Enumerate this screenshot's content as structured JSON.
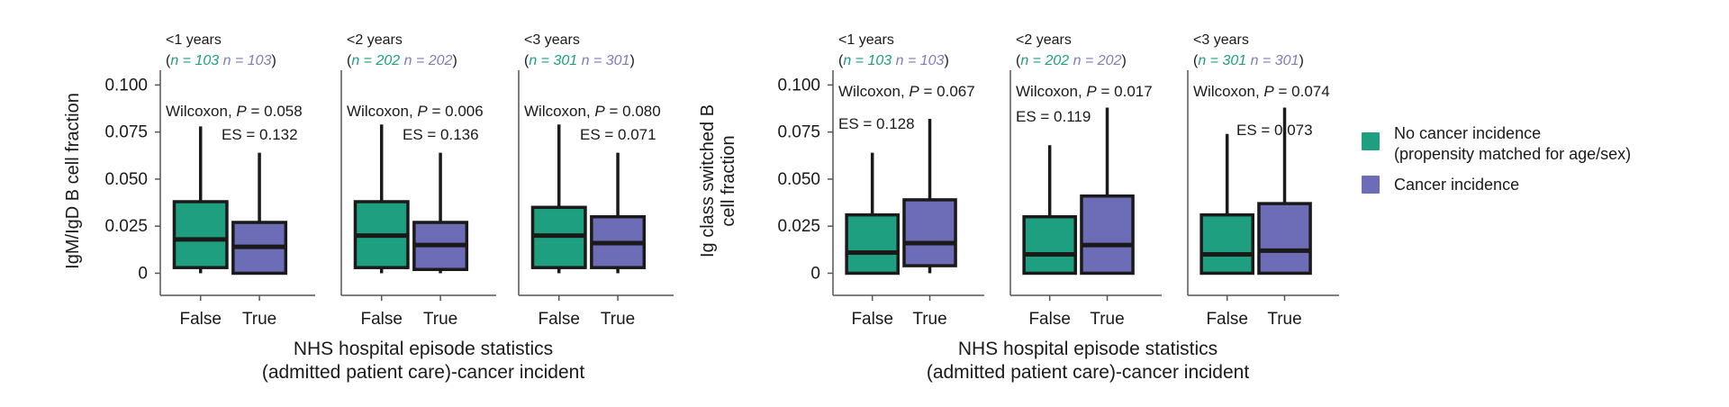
{
  "colors": {
    "no_cancer": "#1E9F7F",
    "cancer": "#6C6CB7",
    "n_no_cancer": "#1E9F7F",
    "n_cancer": "#7E7EB8",
    "axis": "#555555",
    "box_edge": "#1a1a1a"
  },
  "legend": {
    "items": [
      {
        "label_line1": "No cancer incidence",
        "label_line2": "(propensity matched for age/sex)",
        "color": "#1E9F7F"
      },
      {
        "label_line1": "Cancer incidence",
        "label_line2": "",
        "color": "#6C6CB7"
      }
    ]
  },
  "chart_data": [
    {
      "type": "box",
      "ylabel_lines": [
        "IgM/IgD B cell fraction"
      ],
      "yticks": [
        0,
        0.025,
        0.05,
        0.075,
        0.1
      ],
      "ytick_labels": [
        "0",
        "0.025",
        "0.050",
        "0.075",
        "0.100"
      ],
      "ylim": [
        -0.006,
        0.104
      ],
      "categories": [
        "False",
        "True"
      ],
      "xlabel_lines": [
        "NHS hospital episode statistics",
        "(admitted patient care)-cancer incident"
      ],
      "panels": [
        {
          "title": "<1 years",
          "n_open": "(",
          "n_false": "n = 103",
          "n_true": "n = 103",
          "n_close": ")",
          "wilcoxon_prefix": "Wilcoxon, ",
          "p_label": "P",
          "p_value": " = 0.058",
          "es": "ES = 0.132",
          "boxes": [
            {
              "category": "False",
              "whisker_low": 0.0,
              "q1": 0.003,
              "median": 0.018,
              "q3": 0.038,
              "whisker_high": 0.078
            },
            {
              "category": "True",
              "whisker_low": 0.0,
              "q1": 0.0,
              "median": 0.014,
              "q3": 0.027,
              "whisker_high": 0.064
            }
          ]
        },
        {
          "title": "<2 years",
          "n_open": "(",
          "n_false": "n = 202",
          "n_true": "n = 202",
          "n_close": ")",
          "wilcoxon_prefix": "Wilcoxon, ",
          "p_label": "P",
          "p_value": " = 0.006",
          "es": "ES = 0.136",
          "boxes": [
            {
              "category": "False",
              "whisker_low": 0.0,
              "q1": 0.003,
              "median": 0.02,
              "q3": 0.038,
              "whisker_high": 0.079
            },
            {
              "category": "True",
              "whisker_low": 0.0,
              "q1": 0.002,
              "median": 0.015,
              "q3": 0.027,
              "whisker_high": 0.064
            }
          ]
        },
        {
          "title": "<3 years",
          "n_open": "(",
          "n_false": "n = 301",
          "n_true": "n = 301",
          "n_close": ")",
          "wilcoxon_prefix": "Wilcoxon, ",
          "p_label": "P",
          "p_value": " = 0.080",
          "es": "ES = 0.071",
          "boxes": [
            {
              "category": "False",
              "whisker_low": 0.0,
              "q1": 0.003,
              "median": 0.02,
              "q3": 0.035,
              "whisker_high": 0.079
            },
            {
              "category": "True",
              "whisker_low": 0.0,
              "q1": 0.003,
              "median": 0.016,
              "q3": 0.03,
              "whisker_high": 0.064
            }
          ]
        }
      ]
    },
    {
      "type": "box",
      "ylabel_lines": [
        "Ig class switched B",
        "cell fraction"
      ],
      "yticks": [
        0,
        0.025,
        0.05,
        0.075,
        0.1
      ],
      "ytick_labels": [
        "0",
        "0.025",
        "0.050",
        "0.075",
        "0.100"
      ],
      "ylim": [
        -0.006,
        0.104
      ],
      "categories": [
        "False",
        "True"
      ],
      "xlabel_lines": [
        "NHS hospital episode statistics",
        "(admitted patient care)-cancer incident"
      ],
      "panels": [
        {
          "title": "<1 years",
          "n_open": "(",
          "n_false": "n = 103",
          "n_true": "n = 103",
          "n_close": ")",
          "wilcoxon_prefix": "Wilcoxon, ",
          "p_label": "P",
          "p_value": " = 0.067",
          "es": "ES = 0.128",
          "boxes": [
            {
              "category": "False",
              "whisker_low": 0.0,
              "q1": 0.0,
              "median": 0.011,
              "q3": 0.031,
              "whisker_high": 0.064
            },
            {
              "category": "True",
              "whisker_low": 0.0,
              "q1": 0.004,
              "median": 0.016,
              "q3": 0.039,
              "whisker_high": 0.082
            }
          ]
        },
        {
          "title": "<2 years",
          "n_open": "(",
          "n_false": "n = 202",
          "n_true": "n = 202",
          "n_close": ")",
          "wilcoxon_prefix": "Wilcoxon, ",
          "p_label": "P",
          "p_value": " = 0.017",
          "es": "ES = 0.119",
          "boxes": [
            {
              "category": "False",
              "whisker_low": 0.0,
              "q1": 0.0,
              "median": 0.01,
              "q3": 0.03,
              "whisker_high": 0.068
            },
            {
              "category": "True",
              "whisker_low": 0.0,
              "q1": 0.0,
              "median": 0.015,
              "q3": 0.041,
              "whisker_high": 0.088
            }
          ]
        },
        {
          "title": "<3 years",
          "n_open": "(",
          "n_false": "n = 301",
          "n_true": "n = 301",
          "n_close": ")",
          "wilcoxon_prefix": "Wilcoxon, ",
          "p_label": "P",
          "p_value": " = 0.074",
          "es": "ES = 0.073",
          "boxes": [
            {
              "category": "False",
              "whisker_low": 0.0,
              "q1": 0.0,
              "median": 0.01,
              "q3": 0.031,
              "whisker_high": 0.074
            },
            {
              "category": "True",
              "whisker_low": 0.0,
              "q1": 0.0,
              "median": 0.012,
              "q3": 0.037,
              "whisker_high": 0.088
            }
          ]
        }
      ]
    }
  ]
}
